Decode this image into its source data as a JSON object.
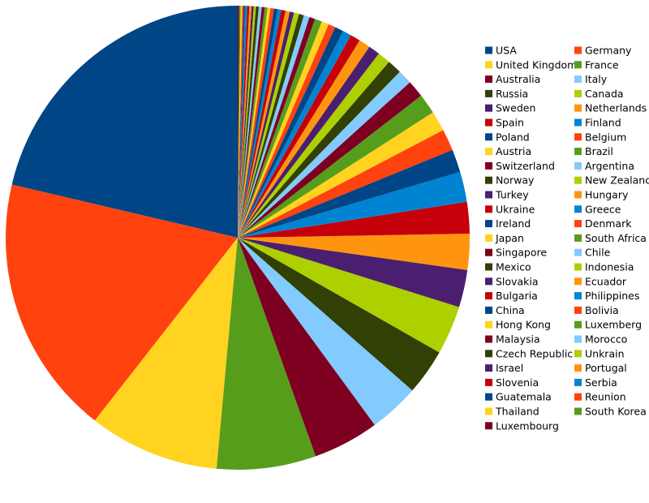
{
  "chart_data": {
    "type": "pie",
    "start_angle": "top",
    "direction": "counterclockwise",
    "categories": [
      "USA",
      "Germany",
      "United Kingdom",
      "France",
      "Australia",
      "Italy",
      "Russia",
      "Canada",
      "Sweden",
      "Netherlands",
      "Spain",
      "Finland",
      "Poland",
      "Belgium",
      "Austria",
      "Brazil",
      "Switzerland",
      "Argentina",
      "Norway",
      "New Zealand",
      "Turkey",
      "Hungary",
      "Ukraine",
      "Greece",
      "Ireland",
      "Denmark",
      "Japan",
      "South Africa",
      "Singapore",
      "Chile",
      "Mexico",
      "Indonesia",
      "Slovakia",
      "Ecuador",
      "Bulgaria",
      "Philippines",
      "China",
      "Bolivia",
      "Hong Kong",
      "Luxemberg",
      "Malaysia",
      "Morocco",
      "Czech Republic",
      "Unkrain",
      "Israel",
      "Portugal",
      "Slovenia",
      "Serbia",
      "Guatemala",
      "Reunion",
      "Thailand",
      "South Korea",
      "Luxembourg"
    ],
    "values": [
      21.3,
      18.1,
      9.1,
      6.9,
      4.6,
      3.5,
      3.2,
      3.4,
      2.6,
      2.5,
      2.2,
      2.1,
      1.6,
      1.5,
      1.4,
      1.4,
      1.2,
      1.0,
      1.0,
      0.9,
      0.8,
      0.8,
      0.7,
      0.6,
      0.6,
      0.5,
      0.5,
      0.5,
      0.4,
      0.4,
      0.35,
      0.35,
      0.3,
      0.3,
      0.3,
      0.25,
      0.25,
      0.25,
      0.2,
      0.2,
      0.2,
      0.2,
      0.2,
      0.15,
      0.15,
      0.15,
      0.15,
      0.15,
      0.1,
      0.1,
      0.1,
      0.1,
      0.1
    ],
    "colors": [
      "#004586",
      "#ff420e",
      "#ffd320",
      "#579d1c",
      "#7e0021",
      "#83caff",
      "#314004",
      "#aecf00",
      "#4b1f6f",
      "#ff950e",
      "#c5000b",
      "#0084d1",
      "#004586",
      "#ff420e",
      "#ffd320",
      "#579d1c",
      "#7e0021",
      "#83caff",
      "#314004",
      "#aecf00",
      "#4b1f6f",
      "#ff950e",
      "#c5000b",
      "#0084d1",
      "#004586",
      "#ff420e",
      "#ffd320",
      "#579d1c",
      "#7e0021",
      "#83caff",
      "#314004",
      "#aecf00",
      "#4b1f6f",
      "#ff950e",
      "#c5000b",
      "#0084d1",
      "#004586",
      "#ff420e",
      "#ffd320",
      "#579d1c",
      "#7e0021",
      "#83caff",
      "#314004",
      "#aecf00",
      "#4b1f6f",
      "#ff950e",
      "#c5000b",
      "#0084d1",
      "#004586",
      "#ff420e",
      "#ffd320",
      "#579d1c",
      "#7e0021"
    ],
    "legend": "right"
  }
}
